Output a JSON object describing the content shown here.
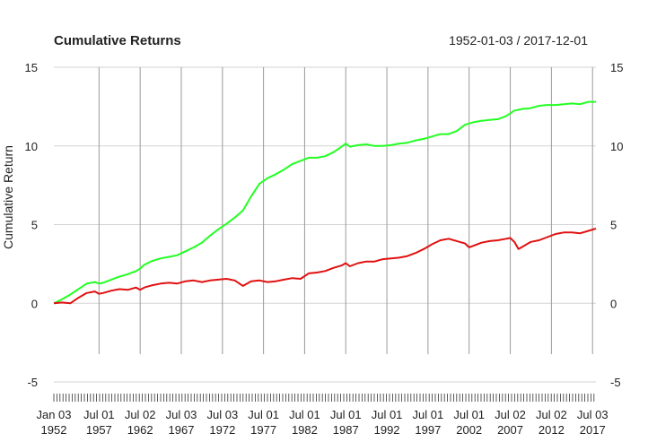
{
  "chart_data": {
    "type": "line",
    "title": "Cumulative Returns",
    "date_range": "1952-01-03 / 2017-12-01",
    "ylabel": "Cumulative Return",
    "xlabel": "",
    "ylim": [
      -5,
      15
    ],
    "y_ticks": [
      -5,
      0,
      5,
      10,
      15
    ],
    "y_axes": [
      "left",
      "right"
    ],
    "grid": true,
    "legend": "none",
    "x_ticks": [
      {
        "date": "1952-01-03",
        "line1": "Jan 03",
        "line2": "1952"
      },
      {
        "date": "1957-07-01",
        "line1": "Jul 01",
        "line2": "1957"
      },
      {
        "date": "1962-07-02",
        "line1": "Jul 02",
        "line2": "1962"
      },
      {
        "date": "1967-07-03",
        "line1": "Jul 03",
        "line2": "1967"
      },
      {
        "date": "1972-07-03",
        "line1": "Jul 03",
        "line2": "1972"
      },
      {
        "date": "1977-07-01",
        "line1": "Jul 01",
        "line2": "1977"
      },
      {
        "date": "1982-07-01",
        "line1": "Jul 01",
        "line2": "1982"
      },
      {
        "date": "1987-07-01",
        "line1": "Jul 01",
        "line2": "1987"
      },
      {
        "date": "1992-07-01",
        "line1": "Jul 01",
        "line2": "1992"
      },
      {
        "date": "1997-07-01",
        "line1": "Jul 01",
        "line2": "1997"
      },
      {
        "date": "2002-07-01",
        "line1": "Jul 01",
        "line2": "2002"
      },
      {
        "date": "2007-07-02",
        "line1": "Jul 02",
        "line2": "2007"
      },
      {
        "date": "2012-07-02",
        "line1": "Jul 02",
        "line2": "2012"
      },
      {
        "date": "2017-07-03",
        "line1": "Jul 03",
        "line2": "2017"
      }
    ],
    "x_start": "1952-01-03",
    "x_end": "2017-12-01",
    "series": [
      {
        "color": "#22ff22",
        "points": [
          [
            "1952-01-03",
            0.0
          ],
          [
            "1953-01-01",
            0.25
          ],
          [
            "1954-01-01",
            0.55
          ],
          [
            "1955-01-01",
            0.9
          ],
          [
            "1956-01-01",
            1.25
          ],
          [
            "1957-01-01",
            1.35
          ],
          [
            "1957-07-01",
            1.25
          ],
          [
            "1958-01-01",
            1.3
          ],
          [
            "1959-01-01",
            1.5
          ],
          [
            "1960-01-01",
            1.7
          ],
          [
            "1961-01-01",
            1.85
          ],
          [
            "1962-01-01",
            2.05
          ],
          [
            "1962-07-01",
            2.2
          ],
          [
            "1963-01-01",
            2.45
          ],
          [
            "1964-01-01",
            2.7
          ],
          [
            "1965-01-01",
            2.85
          ],
          [
            "1966-01-01",
            2.95
          ],
          [
            "1967-01-01",
            3.05
          ],
          [
            "1968-01-01",
            3.3
          ],
          [
            "1969-01-01",
            3.55
          ],
          [
            "1970-01-01",
            3.85
          ],
          [
            "1971-01-01",
            4.3
          ],
          [
            "1972-01-01",
            4.7
          ],
          [
            "1973-01-01",
            5.05
          ],
          [
            "1974-01-01",
            5.45
          ],
          [
            "1975-01-01",
            5.9
          ],
          [
            "1976-01-01",
            6.8
          ],
          [
            "1977-01-01",
            7.6
          ],
          [
            "1978-01-01",
            7.95
          ],
          [
            "1979-01-01",
            8.2
          ],
          [
            "1980-01-01",
            8.5
          ],
          [
            "1981-01-01",
            8.85
          ],
          [
            "1982-01-01",
            9.05
          ],
          [
            "1983-01-01",
            9.25
          ],
          [
            "1984-01-01",
            9.25
          ],
          [
            "1985-01-01",
            9.35
          ],
          [
            "1986-01-01",
            9.6
          ],
          [
            "1987-01-01",
            9.95
          ],
          [
            "1987-07-01",
            10.15
          ],
          [
            "1988-01-01",
            9.95
          ],
          [
            "1989-01-01",
            10.05
          ],
          [
            "1990-01-01",
            10.1
          ],
          [
            "1991-01-01",
            10.0
          ],
          [
            "1992-01-01",
            10.0
          ],
          [
            "1993-01-01",
            10.05
          ],
          [
            "1994-01-01",
            10.15
          ],
          [
            "1995-01-01",
            10.2
          ],
          [
            "1996-01-01",
            10.35
          ],
          [
            "1997-01-01",
            10.45
          ],
          [
            "1998-01-01",
            10.6
          ],
          [
            "1999-01-01",
            10.75
          ],
          [
            "2000-01-01",
            10.75
          ],
          [
            "2001-01-01",
            10.95
          ],
          [
            "2002-01-01",
            11.35
          ],
          [
            "2003-01-01",
            11.5
          ],
          [
            "2004-01-01",
            11.6
          ],
          [
            "2005-01-01",
            11.65
          ],
          [
            "2006-01-01",
            11.7
          ],
          [
            "2007-01-01",
            11.9
          ],
          [
            "2008-01-01",
            12.25
          ],
          [
            "2009-01-01",
            12.35
          ],
          [
            "2010-01-01",
            12.4
          ],
          [
            "2011-01-01",
            12.55
          ],
          [
            "2012-01-01",
            12.6
          ],
          [
            "2013-01-01",
            12.6
          ],
          [
            "2014-01-01",
            12.65
          ],
          [
            "2015-01-01",
            12.7
          ],
          [
            "2016-01-01",
            12.65
          ],
          [
            "2017-01-01",
            12.8
          ],
          [
            "2017-12-01",
            12.8
          ]
        ]
      },
      {
        "color": "#e01010",
        "points": [
          [
            "1952-01-03",
            0.0
          ],
          [
            "1953-01-01",
            0.05
          ],
          [
            "1954-01-01",
            0.0
          ],
          [
            "1955-01-01",
            0.35
          ],
          [
            "1956-01-01",
            0.65
          ],
          [
            "1957-01-01",
            0.75
          ],
          [
            "1957-07-01",
            0.6
          ],
          [
            "1958-01-01",
            0.65
          ],
          [
            "1959-01-01",
            0.8
          ],
          [
            "1960-01-01",
            0.9
          ],
          [
            "1961-01-01",
            0.85
          ],
          [
            "1962-01-01",
            1.0
          ],
          [
            "1962-07-01",
            0.85
          ],
          [
            "1963-01-01",
            1.0
          ],
          [
            "1964-01-01",
            1.15
          ],
          [
            "1965-01-01",
            1.25
          ],
          [
            "1966-01-01",
            1.3
          ],
          [
            "1967-01-01",
            1.25
          ],
          [
            "1968-01-01",
            1.4
          ],
          [
            "1969-01-01",
            1.45
          ],
          [
            "1970-01-01",
            1.35
          ],
          [
            "1971-01-01",
            1.45
          ],
          [
            "1972-01-01",
            1.5
          ],
          [
            "1973-01-01",
            1.55
          ],
          [
            "1974-01-01",
            1.45
          ],
          [
            "1975-01-01",
            1.1
          ],
          [
            "1976-01-01",
            1.4
          ],
          [
            "1977-01-01",
            1.45
          ],
          [
            "1978-01-01",
            1.35
          ],
          [
            "1979-01-01",
            1.4
          ],
          [
            "1980-01-01",
            1.5
          ],
          [
            "1981-01-01",
            1.6
          ],
          [
            "1982-01-01",
            1.55
          ],
          [
            "1983-01-01",
            1.9
          ],
          [
            "1984-01-01",
            1.95
          ],
          [
            "1985-01-01",
            2.05
          ],
          [
            "1986-01-01",
            2.25
          ],
          [
            "1987-01-01",
            2.4
          ],
          [
            "1987-07-01",
            2.55
          ],
          [
            "1988-01-01",
            2.35
          ],
          [
            "1989-01-01",
            2.55
          ],
          [
            "1990-01-01",
            2.65
          ],
          [
            "1991-01-01",
            2.65
          ],
          [
            "1992-01-01",
            2.8
          ],
          [
            "1993-01-01",
            2.85
          ],
          [
            "1994-01-01",
            2.9
          ],
          [
            "1995-01-01",
            3.0
          ],
          [
            "1996-01-01",
            3.2
          ],
          [
            "1997-01-01",
            3.45
          ],
          [
            "1998-01-01",
            3.75
          ],
          [
            "1999-01-01",
            4.0
          ],
          [
            "2000-01-01",
            4.1
          ],
          [
            "2001-01-01",
            3.95
          ],
          [
            "2002-01-01",
            3.8
          ],
          [
            "2002-07-01",
            3.55
          ],
          [
            "2003-01-01",
            3.65
          ],
          [
            "2004-01-01",
            3.85
          ],
          [
            "2005-01-01",
            3.95
          ],
          [
            "2006-01-01",
            4.0
          ],
          [
            "2007-01-01",
            4.1
          ],
          [
            "2007-07-01",
            4.15
          ],
          [
            "2008-01-01",
            3.9
          ],
          [
            "2008-07-01",
            3.45
          ],
          [
            "2009-01-01",
            3.6
          ],
          [
            "2010-01-01",
            3.9
          ],
          [
            "2011-01-01",
            4.0
          ],
          [
            "2012-01-01",
            4.2
          ],
          [
            "2013-01-01",
            4.4
          ],
          [
            "2014-01-01",
            4.5
          ],
          [
            "2015-01-01",
            4.5
          ],
          [
            "2016-01-01",
            4.45
          ],
          [
            "2017-01-01",
            4.6
          ],
          [
            "2017-12-01",
            4.75
          ]
        ]
      }
    ]
  }
}
